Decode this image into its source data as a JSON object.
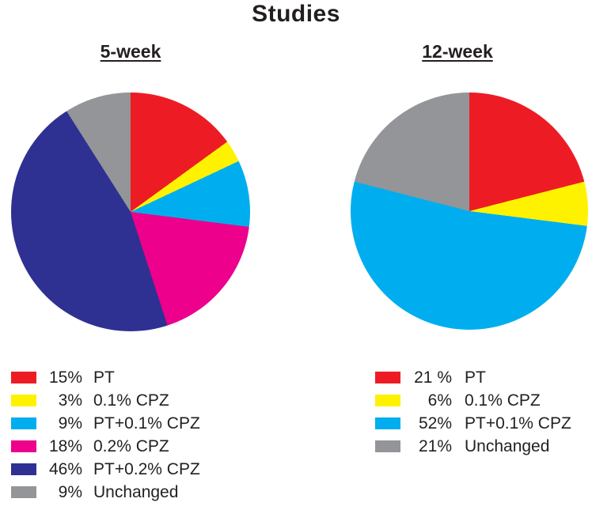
{
  "figure_title": "Studies",
  "colors": {
    "red": "#ED1C24",
    "yellow": "#FFF200",
    "cyan": "#00AEEF",
    "magenta": "#EC008C",
    "navy": "#2E3192",
    "gray": "#939598",
    "text": "#231F20",
    "background": "#FFFFFF"
  },
  "chart_data": [
    {
      "type": "pie",
      "title": "5-week",
      "start_angle_deg": 0,
      "direction": "clockwise",
      "legend_position": "below-left",
      "slices": [
        {
          "label": "PT",
          "percent_label": "15%",
          "value": 15,
          "color": "#ED1C24"
        },
        {
          "label": "0.1% CPZ",
          "percent_label": "3%",
          "value": 3,
          "color": "#FFF200"
        },
        {
          "label": "PT+0.1% CPZ",
          "percent_label": "9%",
          "value": 9,
          "color": "#00AEEF"
        },
        {
          "label": "0.2% CPZ",
          "percent_label": "18%",
          "value": 18,
          "color": "#EC008C"
        },
        {
          "label": "PT+0.2% CPZ",
          "percent_label": "46%",
          "value": 46,
          "color": "#2E3192"
        },
        {
          "label": "Unchanged",
          "percent_label": "9%",
          "value": 9,
          "color": "#939598"
        }
      ]
    },
    {
      "type": "pie",
      "title": "12-week",
      "start_angle_deg": 0,
      "direction": "clockwise",
      "legend_position": "below-right",
      "slices": [
        {
          "label": "PT",
          "percent_label": "21 %",
          "value": 21,
          "color": "#ED1C24"
        },
        {
          "label": "0.1% CPZ",
          "percent_label": "6%",
          "value": 6,
          "color": "#FFF200"
        },
        {
          "label": "PT+0.1% CPZ",
          "percent_label": "52%",
          "value": 52,
          "color": "#00AEEF"
        },
        {
          "label": "Unchanged",
          "percent_label": "21%",
          "value": 21,
          "color": "#939598"
        }
      ]
    }
  ]
}
